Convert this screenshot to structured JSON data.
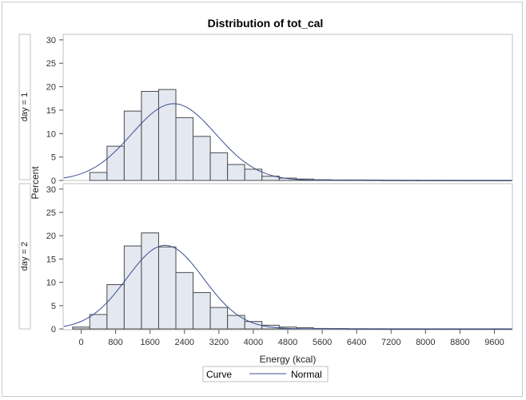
{
  "chart_data": {
    "type": "bar",
    "title": "Distribution of tot_cal",
    "xlabel": "Energy (kcal)",
    "ylabel": "Percent",
    "xlim": [
      -400,
      10000
    ],
    "ylim": [
      0,
      31
    ],
    "bin_width": 400,
    "xticks": [
      0,
      800,
      1600,
      2400,
      3200,
      4000,
      4800,
      5600,
      6400,
      7200,
      8000,
      8800,
      9600
    ],
    "yticks": [
      0,
      5,
      10,
      15,
      20,
      25,
      30
    ],
    "grid": false,
    "legend": {
      "position": "bottom",
      "title": "Curve",
      "entries": [
        "Normal"
      ]
    },
    "colors": {
      "bar_fill": "#e3e8f1",
      "bar_stroke": "#4a4a4a",
      "curve": "#3b4f8f",
      "frame": "#c2c2c2"
    },
    "panels": [
      {
        "label": "day = 1",
        "bins": [
          {
            "x": 0,
            "value": 0
          },
          {
            "x": 400,
            "value": 1.7
          },
          {
            "x": 800,
            "value": 7.3
          },
          {
            "x": 1200,
            "value": 14.8
          },
          {
            "x": 1600,
            "value": 19.0
          },
          {
            "x": 2000,
            "value": 19.4
          },
          {
            "x": 2400,
            "value": 13.4
          },
          {
            "x": 2800,
            "value": 9.4
          },
          {
            "x": 3200,
            "value": 5.9
          },
          {
            "x": 3600,
            "value": 3.4
          },
          {
            "x": 4000,
            "value": 2.4
          },
          {
            "x": 4400,
            "value": 0.9
          },
          {
            "x": 4800,
            "value": 0.5
          },
          {
            "x": 5200,
            "value": 0.3
          },
          {
            "x": 5600,
            "value": 0.15
          },
          {
            "x": 6000,
            "value": 0.1
          },
          {
            "x": 6400,
            "value": 0.1
          },
          {
            "x": 6800,
            "value": 0.08
          },
          {
            "x": 7200,
            "value": 0.05
          },
          {
            "x": 7600,
            "value": 0.04
          },
          {
            "x": 8000,
            "value": 0.03
          },
          {
            "x": 8400,
            "value": 0.03
          },
          {
            "x": 8800,
            "value": 0.02
          },
          {
            "x": 9200,
            "value": 0.02
          },
          {
            "x": 9600,
            "value": 0.02
          },
          {
            "x": 10000,
            "value": 0.02
          }
        ],
        "normal": {
          "mean": 2150,
          "sd": 975
        }
      },
      {
        "label": "day = 2",
        "bins": [
          {
            "x": 0,
            "value": 0.4
          },
          {
            "x": 400,
            "value": 3.1
          },
          {
            "x": 800,
            "value": 9.5
          },
          {
            "x": 1200,
            "value": 17.8
          },
          {
            "x": 1600,
            "value": 20.6
          },
          {
            "x": 2000,
            "value": 17.6
          },
          {
            "x": 2400,
            "value": 12.1
          },
          {
            "x": 2800,
            "value": 7.8
          },
          {
            "x": 3200,
            "value": 4.6
          },
          {
            "x": 3600,
            "value": 2.9
          },
          {
            "x": 4000,
            "value": 1.6
          },
          {
            "x": 4400,
            "value": 0.8
          },
          {
            "x": 4800,
            "value": 0.4
          },
          {
            "x": 5200,
            "value": 0.25
          },
          {
            "x": 5600,
            "value": 0.1
          },
          {
            "x": 6000,
            "value": 0.08
          },
          {
            "x": 6400,
            "value": 0.05
          },
          {
            "x": 6800,
            "value": 0.04
          },
          {
            "x": 7200,
            "value": 0.03
          },
          {
            "x": 7600,
            "value": 0.03
          },
          {
            "x": 8000,
            "value": 0.02
          },
          {
            "x": 8400,
            "value": 0.02
          },
          {
            "x": 8800,
            "value": 0.02
          },
          {
            "x": 9200,
            "value": 0.02
          },
          {
            "x": 9600,
            "value": 0.02
          },
          {
            "x": 10000,
            "value": 0.02
          }
        ],
        "normal": {
          "mean": 1950,
          "sd": 890
        }
      }
    ]
  }
}
